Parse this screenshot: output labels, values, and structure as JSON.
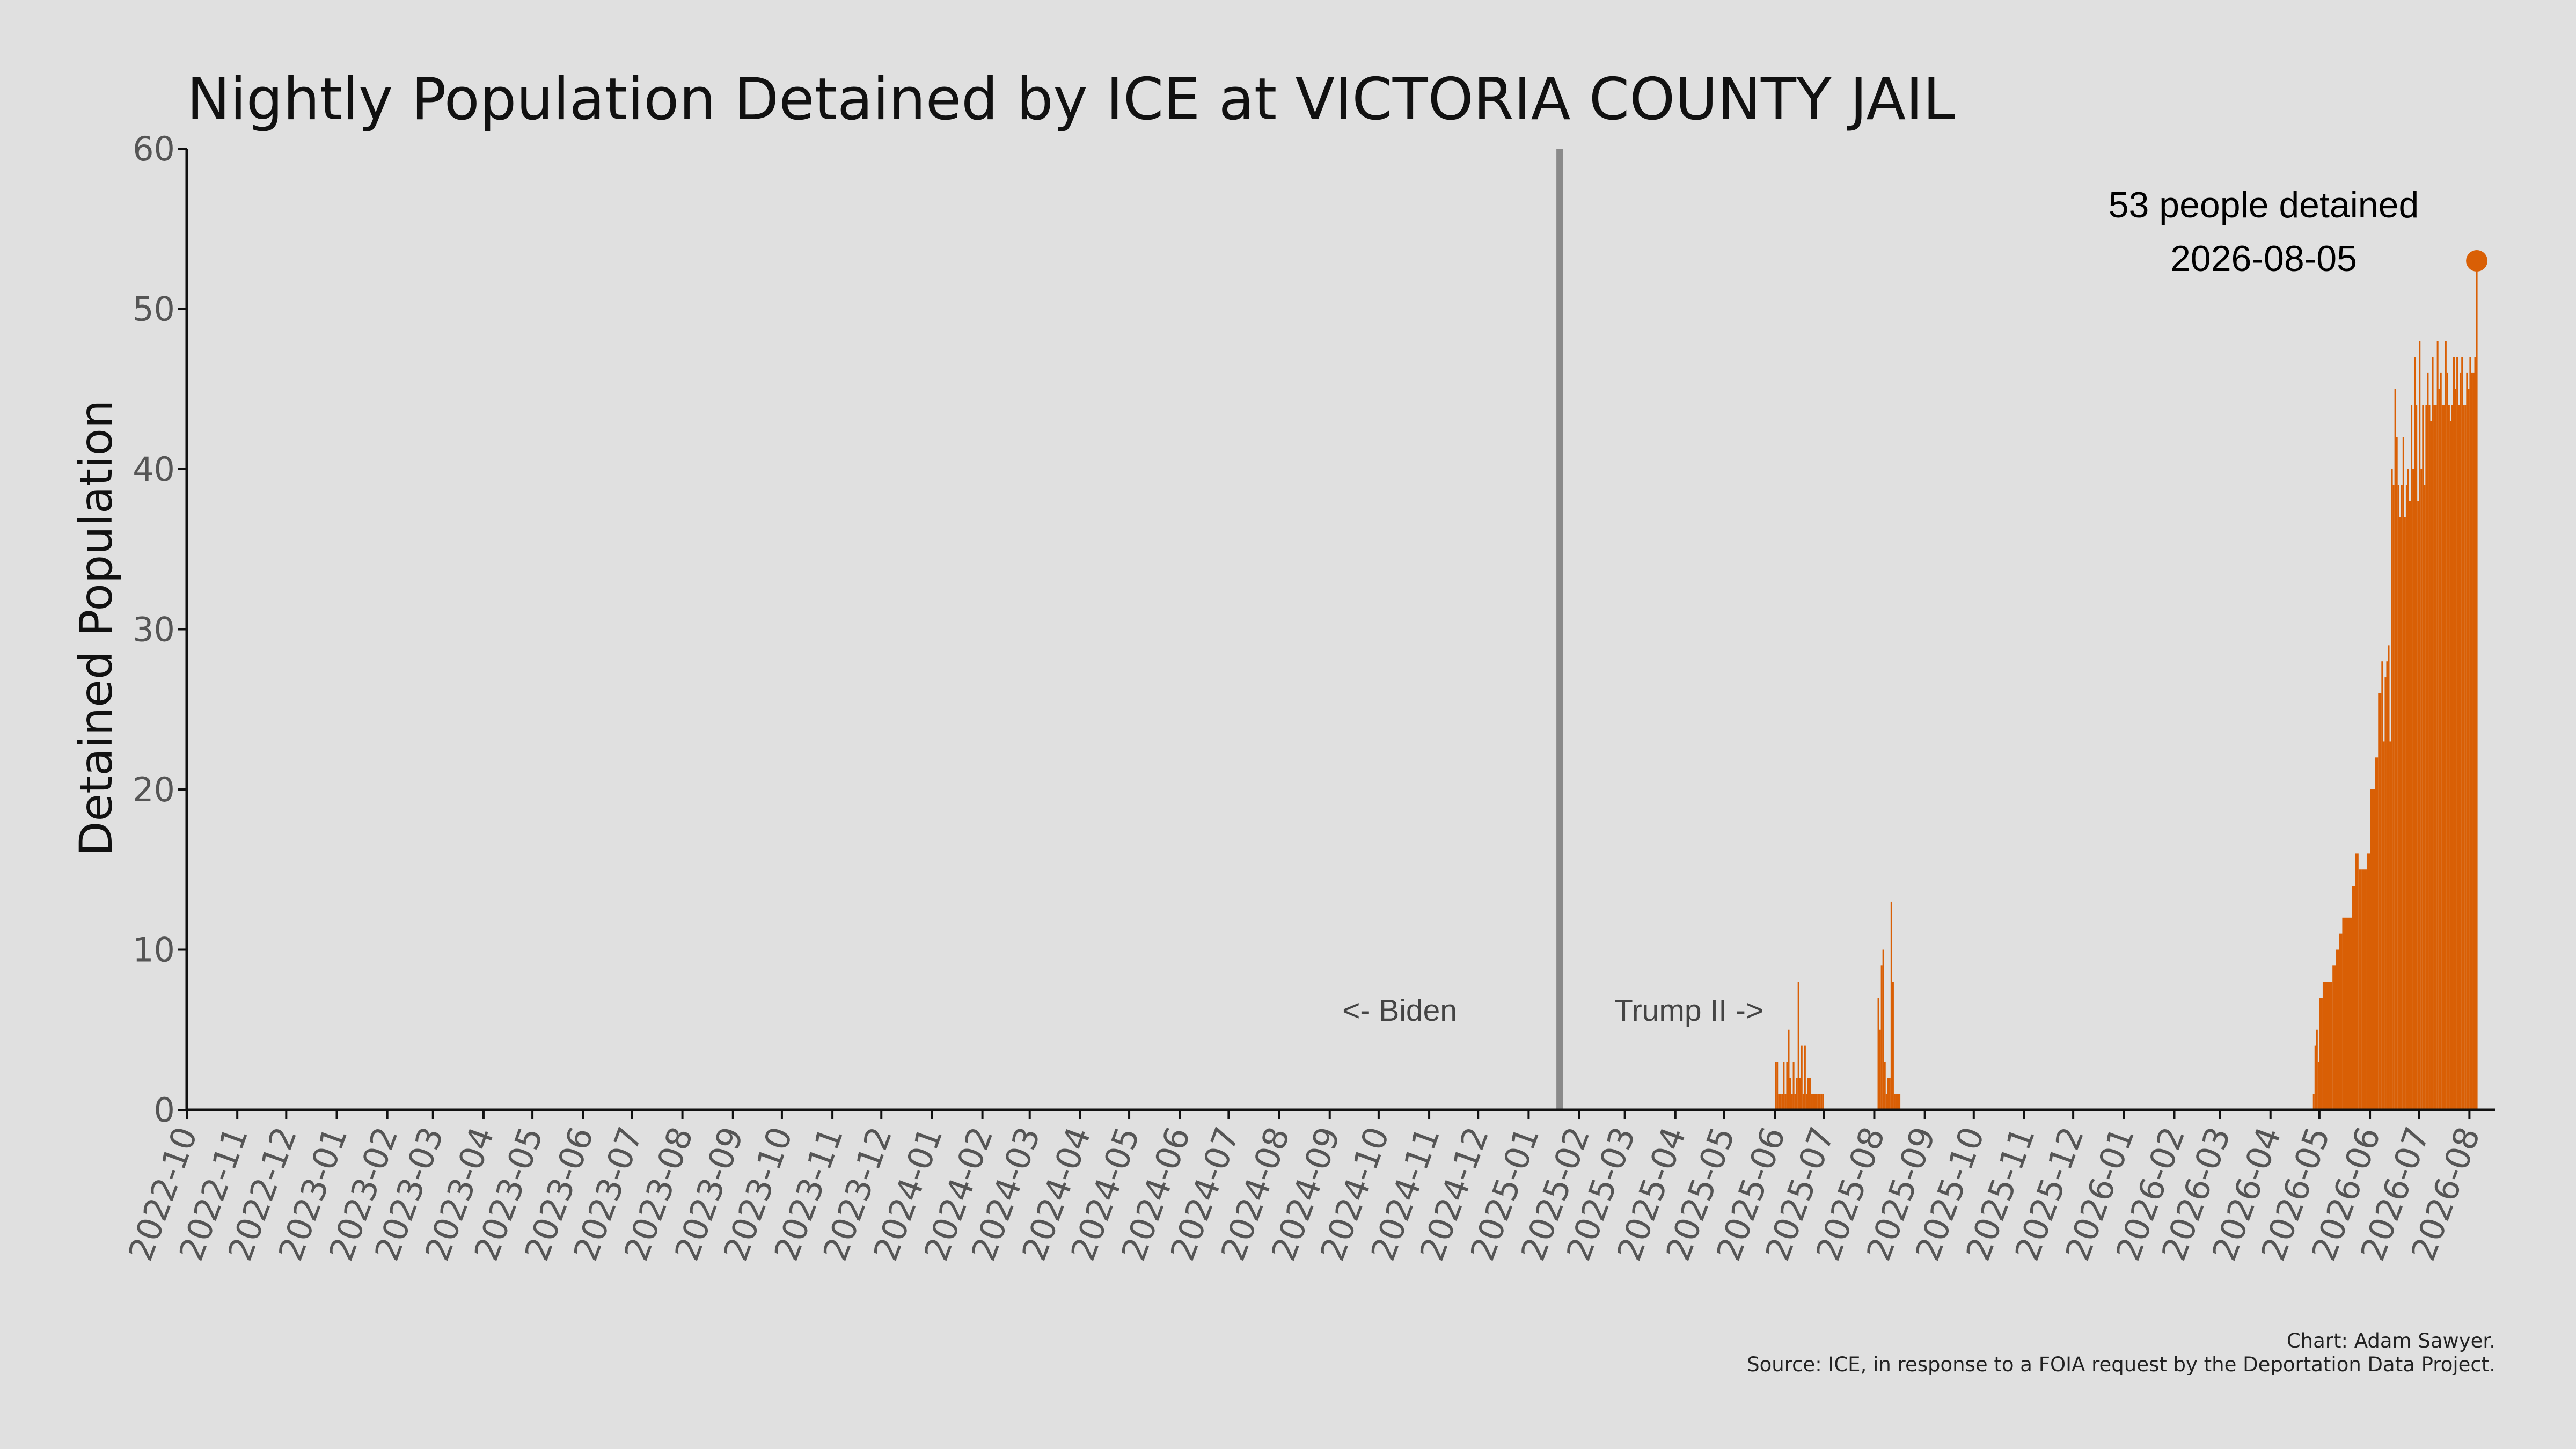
{
  "chart_data": {
    "type": "area",
    "title": "Nightly Population Detained by ICE at VICTORIA COUNTY JAIL",
    "ylabel": "Detained Population",
    "xlabel": "",
    "ylim": [
      0,
      60
    ],
    "yticks": [
      0,
      10,
      20,
      30,
      40,
      50,
      60
    ],
    "xlim": [
      "2022-10-01",
      "2026-08-17"
    ],
    "grid": false,
    "color": "#d95f05",
    "x_tick_labels": [
      "2022-10",
      "2022-11",
      "2022-12",
      "2023-01",
      "2023-02",
      "2023-03",
      "2023-04",
      "2023-05",
      "2023-06",
      "2023-07",
      "2023-08",
      "2023-09",
      "2023-10",
      "2023-11",
      "2023-12",
      "2024-01",
      "2024-02",
      "2024-03",
      "2024-04",
      "2024-05",
      "2024-06",
      "2024-07",
      "2024-08",
      "2024-09",
      "2024-10",
      "2024-11",
      "2024-12",
      "2025-01",
      "2025-02",
      "2025-03",
      "2025-04",
      "2025-05",
      "2025-06",
      "2025-07",
      "2025-08",
      "2025-09",
      "2025-10",
      "2025-11",
      "2025-12",
      "2026-01",
      "2026-02",
      "2026-03",
      "2026-04",
      "2026-05",
      "2026-06",
      "2026-07",
      "2026-08"
    ],
    "series": [
      {
        "x": [
          "2025-06-01",
          "2025-06-02",
          "2025-06-03",
          "2025-06-05",
          "2025-06-06",
          "2025-06-07",
          "2025-06-08",
          "2025-06-09",
          "2025-06-10",
          "2025-06-11",
          "2025-06-12",
          "2025-06-13",
          "2025-06-14",
          "2025-06-15",
          "2025-06-16",
          "2025-06-17",
          "2025-06-18",
          "2025-06-19",
          "2025-06-20",
          "2025-06-21",
          "2025-06-22",
          "2025-06-23",
          "2025-06-24",
          "2025-06-25",
          "2025-06-26",
          "2025-06-27",
          "2025-06-29",
          "2025-06-30",
          "2025-08-03",
          "2025-08-04",
          "2025-08-05",
          "2025-08-06",
          "2025-08-07",
          "2025-08-08",
          "2025-08-09",
          "2025-08-10",
          "2025-08-11",
          "2025-08-12",
          "2025-08-13",
          "2025-08-14",
          "2025-08-15",
          "2025-08-16",
          "2026-04-27",
          "2026-04-28",
          "2026-04-29",
          "2026-04-30",
          "2026-05-01",
          "2026-05-03",
          "2026-05-06",
          "2026-05-09",
          "2026-05-11",
          "2026-05-13",
          "2026-05-15",
          "2026-05-18",
          "2026-05-21",
          "2026-05-23",
          "2026-05-25",
          "2026-05-27",
          "2026-05-30",
          "2026-06-01",
          "2026-06-04",
          "2026-06-06",
          "2026-06-08",
          "2026-06-09",
          "2026-06-10",
          "2026-06-11",
          "2026-06-12",
          "2026-06-13",
          "2026-06-14",
          "2026-06-15",
          "2026-06-16",
          "2026-06-17",
          "2026-06-18",
          "2026-06-19",
          "2026-06-20",
          "2026-06-21",
          "2026-06-22",
          "2026-06-23",
          "2026-06-24",
          "2026-06-25",
          "2026-06-26",
          "2026-06-27",
          "2026-06-28",
          "2026-06-29",
          "2026-06-30",
          "2026-07-01",
          "2026-07-02",
          "2026-07-03",
          "2026-07-04",
          "2026-07-05",
          "2026-07-06",
          "2026-07-07",
          "2026-07-08",
          "2026-07-09",
          "2026-07-10",
          "2026-07-11",
          "2026-07-12",
          "2026-07-13",
          "2026-07-14",
          "2026-07-15",
          "2026-07-16",
          "2026-07-17",
          "2026-07-18",
          "2026-07-19",
          "2026-07-20",
          "2026-07-21",
          "2026-07-22",
          "2026-07-23",
          "2026-07-24",
          "2026-07-25",
          "2026-07-26",
          "2026-07-27",
          "2026-07-28",
          "2026-07-29",
          "2026-07-30",
          "2026-07-31",
          "2026-08-01",
          "2026-08-02",
          "2026-08-03",
          "2026-08-04",
          "2026-08-05"
        ],
        "y": [
          3,
          3,
          1,
          1,
          3,
          1,
          3,
          5,
          2,
          1,
          3,
          1,
          2,
          8,
          2,
          4,
          1,
          4,
          1,
          2,
          2,
          1,
          1,
          1,
          1,
          1,
          1,
          1,
          7,
          5,
          9,
          10,
          3,
          1,
          2,
          2,
          13,
          8,
          1,
          1,
          1,
          1,
          1,
          4,
          5,
          3,
          7,
          8,
          8,
          9,
          10,
          11,
          12,
          12,
          14,
          16,
          15,
          15,
          16,
          20,
          22,
          26,
          28,
          23,
          27,
          28,
          29,
          23,
          40,
          39,
          45,
          42,
          39,
          37,
          39,
          42,
          37,
          39,
          40,
          38,
          44,
          40,
          47,
          44,
          38,
          48,
          40,
          44,
          39,
          44,
          46,
          44,
          43,
          47,
          44,
          44,
          48,
          45,
          46,
          44,
          44,
          48,
          46,
          44,
          43,
          44,
          47,
          45,
          47,
          44,
          46,
          47,
          44,
          44,
          46,
          45,
          47,
          46,
          46,
          47,
          53
        ]
      }
    ],
    "vertical_marker": "2025-01-20",
    "annotations": {
      "biden": "<- Biden",
      "trump": "Trump II ->"
    },
    "peak": {
      "date": "2026-08-05",
      "value": 53,
      "label_line1": "53 people detained",
      "label_line2": "2026-08-05"
    }
  },
  "credits": {
    "line1": "Chart: Adam Sawyer.",
    "line2": "Source: ICE, in response to a FOIA request by the Deportation Data Project."
  }
}
